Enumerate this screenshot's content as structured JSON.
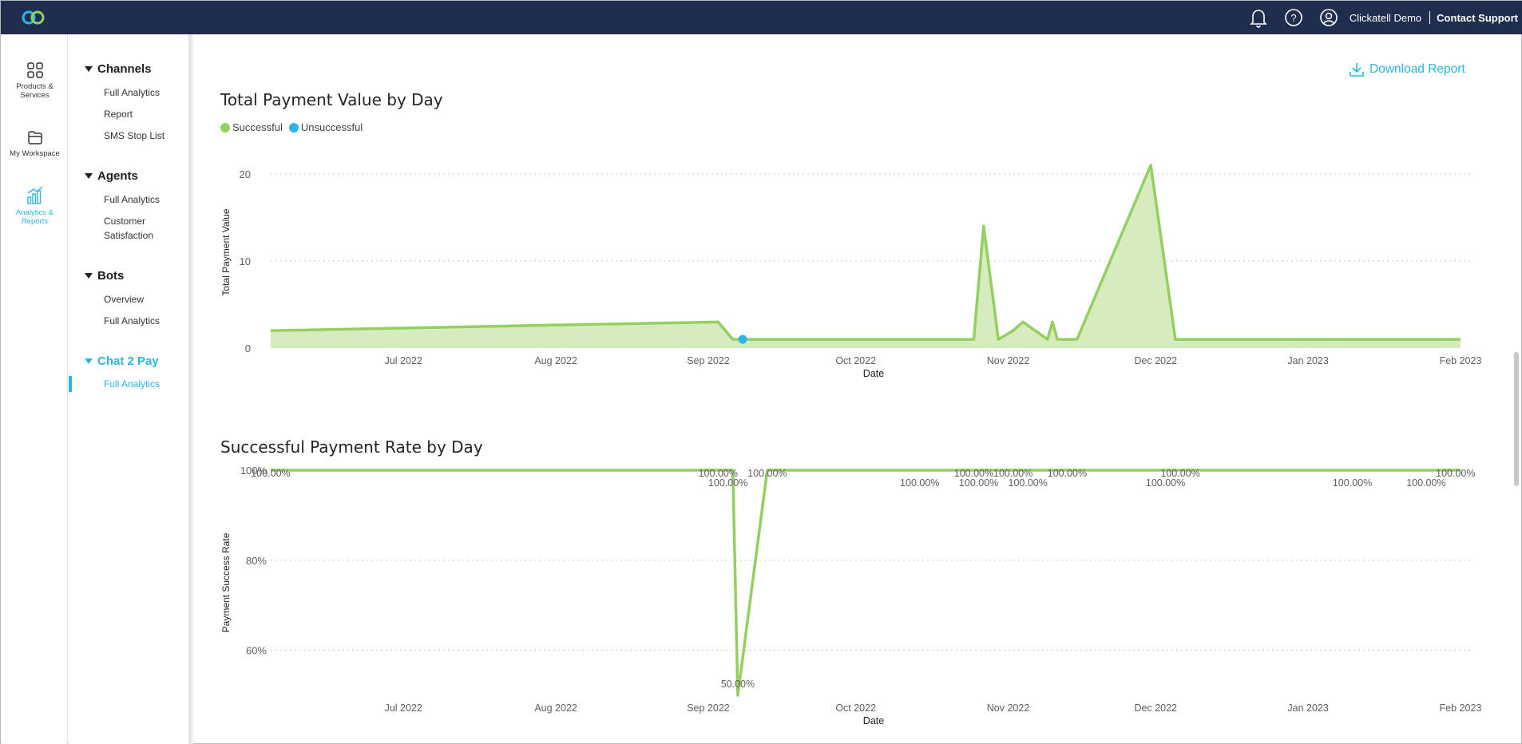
{
  "header": {
    "user_name": "Clickatell Demo",
    "contact_label": "Contact Support",
    "icons": [
      "logo-icon",
      "bell-icon",
      "help-icon",
      "user-icon"
    ]
  },
  "rail": {
    "items": [
      {
        "label1": "Products &",
        "label2": "Services",
        "icon": "grid-icon"
      },
      {
        "label1": "My Workspace",
        "label2": "",
        "icon": "folder-icon"
      },
      {
        "label1": "Analytics &",
        "label2": "Reports",
        "icon": "analytics-icon"
      }
    ]
  },
  "subnav": {
    "sections": [
      {
        "title": "Channels",
        "items": [
          "Full Analytics",
          "Report",
          "SMS Stop List"
        ]
      },
      {
        "title": "Agents",
        "items": [
          "Full Analytics",
          "Customer",
          "Satisfaction"
        ]
      },
      {
        "title": "Bots",
        "items": [
          "Overview",
          "Full Analytics"
        ]
      },
      {
        "title": "Chat 2 Pay",
        "items": [
          "Full Analytics"
        ]
      }
    ]
  },
  "download_label": "Download Report",
  "colors": {
    "accent": "#2bb6e6",
    "success": "#93d060",
    "success_fill": "#d6ecbf",
    "header_bg": "#1f2d4e"
  },
  "charts": {
    "payment_value": {
      "title": "Total Payment Value by Day",
      "legend": [
        "Successful",
        "Unsuccessful"
      ],
      "xlabel": "Date",
      "ylabel": "Total Payment Value"
    },
    "success_rate": {
      "title": "Successful Payment Rate by Day",
      "xlabel": "Date",
      "ylabel": "Payment Success Rate"
    }
  },
  "chart_data": [
    {
      "type": "area",
      "title": "Total Payment Value by Day",
      "xlabel": "Date",
      "ylabel": "Total Payment Value",
      "x_ticks": [
        "Jul 2022",
        "Aug 2022",
        "Sep 2022",
        "Oct 2022",
        "Nov 2022",
        "Dec 2022",
        "Jan 2023",
        "Feb 2023"
      ],
      "y_ticks": [
        "0",
        "10",
        "20"
      ],
      "ylim": [
        0,
        22
      ],
      "xlim": [
        "2022-06-04",
        "2023-02-01"
      ],
      "grid": true,
      "legend_position": "top-left",
      "series": [
        {
          "name": "Successful",
          "color": "#93d060",
          "points": [
            [
              "2022-06-04",
              2
            ],
            [
              "2022-09-03",
              3
            ],
            [
              "2022-09-06",
              1
            ],
            [
              "2022-10-25",
              1
            ],
            [
              "2022-10-27",
              14
            ],
            [
              "2022-10-30",
              1
            ],
            [
              "2022-11-02",
              2
            ],
            [
              "2022-11-04",
              3
            ],
            [
              "2022-11-09",
              1
            ],
            [
              "2022-11-10",
              3
            ],
            [
              "2022-11-11",
              1
            ],
            [
              "2022-11-15",
              1
            ],
            [
              "2022-11-30",
              21
            ],
            [
              "2022-12-05",
              1
            ],
            [
              "2023-02-01",
              1
            ]
          ]
        },
        {
          "name": "Unsuccessful",
          "color": "#2bb6e6",
          "points": [
            [
              "2022-09-08",
              1
            ]
          ]
        }
      ]
    },
    {
      "type": "line",
      "title": "Successful Payment Rate by Day",
      "xlabel": "Date",
      "ylabel": "Payment Success Rate",
      "x_ticks": [
        "Jul 2022",
        "Aug 2022",
        "Sep 2022",
        "Oct 2022",
        "Nov 2022",
        "Dec 2022",
        "Jan 2023",
        "Feb 2023"
      ],
      "y_ticks": [
        "60%",
        "80%",
        "100%"
      ],
      "ylim": [
        0.5,
        1.0
      ],
      "xlim": [
        "2022-06-04",
        "2023-02-01"
      ],
      "grid": true,
      "series": [
        {
          "name": "Successful",
          "color": "#93d060",
          "points": [
            [
              "2022-06-04",
              1.0
            ],
            [
              "2022-09-06",
              1.0
            ],
            [
              "2022-09-07",
              0.5
            ],
            [
              "2022-09-13",
              1.0
            ],
            [
              "2023-02-01",
              1.0
            ]
          ]
        }
      ],
      "data_labels": [
        {
          "date": "2022-06-04",
          "text": "100.00%",
          "row": 0
        },
        {
          "date": "2022-09-03",
          "text": "100.00%",
          "row": 0
        },
        {
          "date": "2022-09-05",
          "text": "100.00%",
          "row": 1
        },
        {
          "date": "2022-09-13",
          "text": "100.00%",
          "row": 0
        },
        {
          "date": "2022-10-14",
          "text": "100.00%",
          "row": 1
        },
        {
          "date": "2022-10-25",
          "text": "100.00%",
          "row": 0
        },
        {
          "date": "2022-10-26",
          "text": "100.00%",
          "row": 1
        },
        {
          "date": "2022-11-02",
          "text": "100.00%",
          "row": 0
        },
        {
          "date": "2022-11-05",
          "text": "100.00%",
          "row": 1
        },
        {
          "date": "2022-11-13",
          "text": "100.00%",
          "row": 0
        },
        {
          "date": "2022-12-03",
          "text": "100.00%",
          "row": 1
        },
        {
          "date": "2022-12-06",
          "text": "100.00%",
          "row": 0
        },
        {
          "date": "2023-01-10",
          "text": "100.00%",
          "row": 1
        },
        {
          "date": "2023-01-25",
          "text": "100.00%",
          "row": 1
        },
        {
          "date": "2023-01-31",
          "text": "100.00%",
          "row": 0
        },
        {
          "date": "2022-09-07",
          "text": "50.00%",
          "row": 2
        }
      ]
    }
  ]
}
